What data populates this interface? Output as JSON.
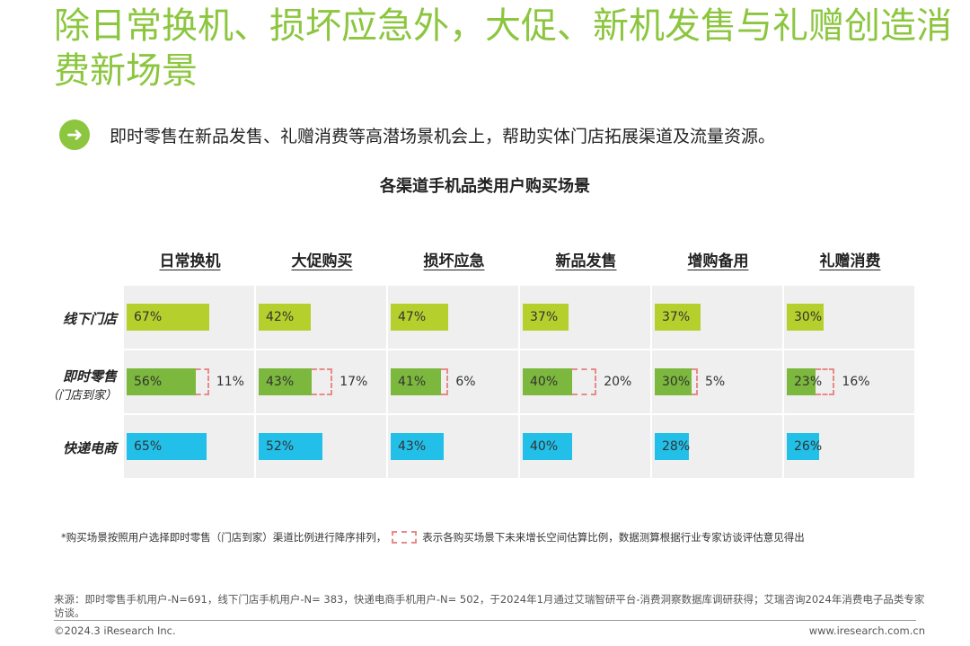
{
  "title": "除日常换机、损坏应急外，大促、新机发售与礼赠创造消费新场景",
  "subtitle": "即时零售在新品发售、礼赠消费等高潜场景机会上，帮助实体门店拓展渠道及流量资源。",
  "colors": {
    "title": "#8cc63f",
    "offline": "#b5d02c",
    "instant": "#7cb83d",
    "express": "#22c0e8",
    "growth_border": "#e88a8a"
  },
  "chart_data": {
    "type": "bar",
    "title": "各渠道手机品类用户购买场景",
    "categories": [
      "日常换机",
      "大促购买",
      "损坏应急",
      "新品发售",
      "增购备用",
      "礼赠消费"
    ],
    "series": [
      {
        "name": "线下门店",
        "values": [
          67,
          42,
          47,
          37,
          37,
          30
        ]
      },
      {
        "name": "即时零售",
        "name_sub": "（门店到家）",
        "values": [
          56,
          43,
          41,
          40,
          30,
          23
        ],
        "growth": [
          11,
          17,
          6,
          20,
          5,
          16
        ]
      },
      {
        "name": "快递电商",
        "values": [
          65,
          52,
          43,
          40,
          28,
          26
        ]
      }
    ],
    "unit": "%"
  },
  "note_pre": "*购买场景按照用户选择即时零售（门店到家）渠道比例进行降序排列，",
  "note_post": "表示各购买场景下未来增长空间估算比例，数据测算根据行业专家访谈评估意见得出",
  "source": "来源：即时零售手机用户-N=691，线下门店手机用户-N= 383，快递电商手机用户-N= 502，于2024年1月通过艾瑞智研平台-消费洞察数据库调研获得；艾瑞咨询2024年消费电子品类专家访谈。",
  "copyright": "©2024.3 iResearch Inc.",
  "website": "www.iresearch.com.cn"
}
